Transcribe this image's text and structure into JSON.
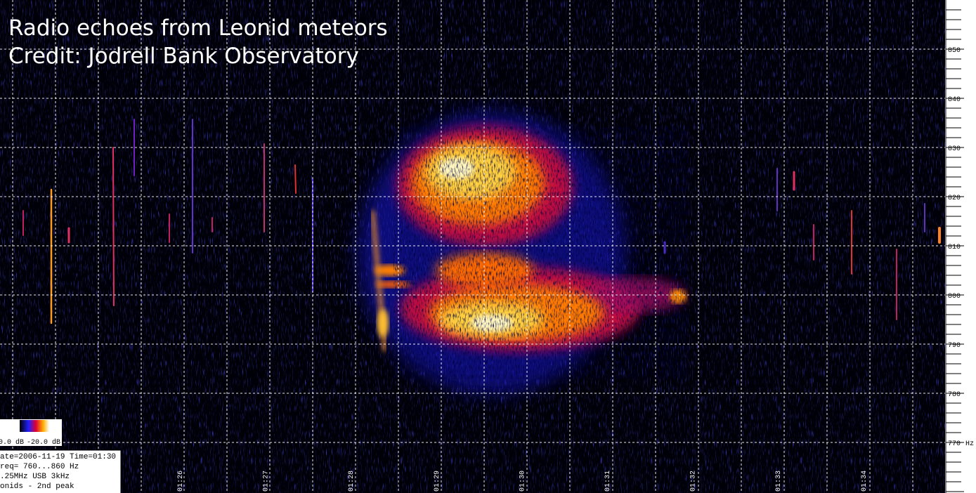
{
  "title": {
    "line1": "Radio echoes from Leonid meteors",
    "line2": "Credit: Jodrell Bank Observatory"
  },
  "frequency_axis": {
    "labels": [
      "850",
      "840",
      "830",
      "820",
      "810",
      "800",
      "790",
      "780",
      "770"
    ],
    "unit": "Hz"
  },
  "time_axis": {
    "labels": [
      "01:26",
      "01:27",
      "01:28",
      "01:29",
      "01:30",
      "01:31",
      "01:32",
      "01:33",
      "01:34"
    ]
  },
  "colorbar": {
    "low": "0.0 dB",
    "high": "-20.0 dB"
  },
  "info_box": {
    "lines": [
      "ate=2006-11-19 Time=01:30",
      "req= 760...860 Hz",
      ".25MHz USB 3kHz",
      "onids - 2nd peak"
    ]
  }
}
